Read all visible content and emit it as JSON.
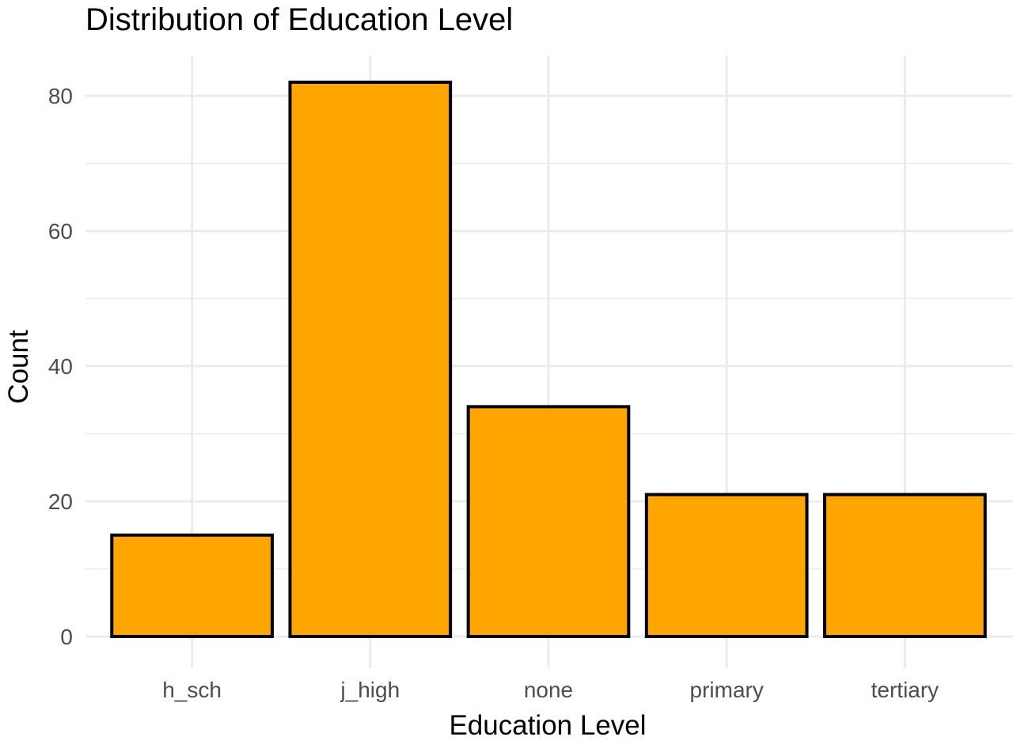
{
  "chart_data": {
    "type": "bar",
    "title": "Distribution of Education Level",
    "xlabel": "Education Level",
    "ylabel": "Count",
    "categories": [
      "h_sch",
      "j_high",
      "none",
      "primary",
      "tertiary"
    ],
    "values": [
      15,
      82,
      34,
      21,
      21
    ],
    "ylim": [
      0,
      82
    ],
    "yticks": [
      0,
      20,
      40,
      60,
      80
    ],
    "grid": true,
    "legend": "none",
    "colors": {
      "bar_fill": "#FFA500",
      "bar_stroke": "#000000",
      "grid": "#EBEBEB",
      "text": "#4D4D4D",
      "title": "#000000"
    }
  }
}
